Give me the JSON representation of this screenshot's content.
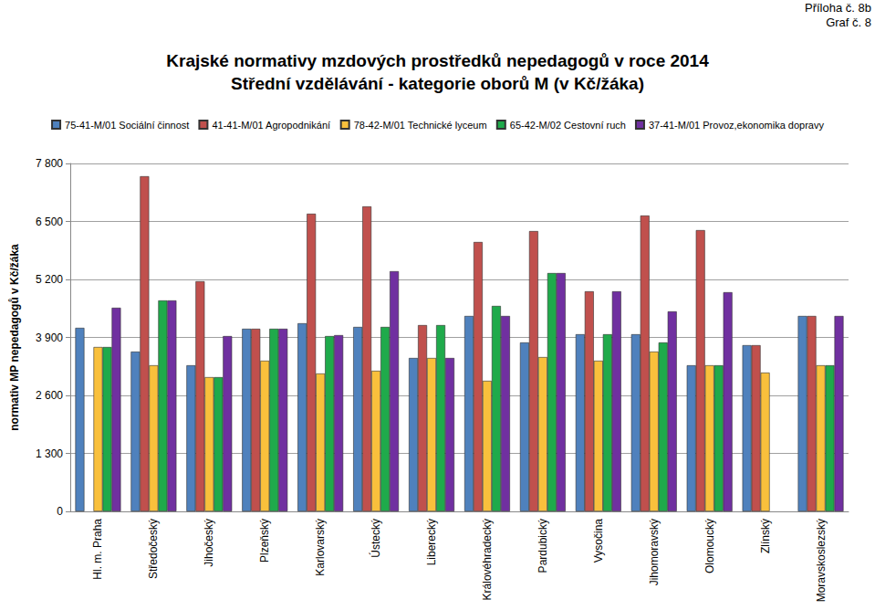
{
  "chart_data": {
    "type": "bar",
    "title": "Krajské normativy mzdových prostředků nepedagogů v roce 2014",
    "subtitle": "Střední vzdělávání - kategorie oborů M (v Kč/žáka)",
    "annotations": [
      "Příloha č. 8b",
      "Graf č. 8"
    ],
    "y_label": "normativ MP nepedagogů v Kč/žáka",
    "categories": [
      "Hl. m. Praha",
      "Středočeský",
      "Jihočeský",
      "Plzeňský",
      "Karlovarský",
      "Ústecký",
      "Liberecký",
      "Královéhradecký",
      "Pardubický",
      "Vysočina",
      "Jihomoravský",
      "Olomoucký",
      "Zlínský",
      "Moravskoslezský"
    ],
    "series": [
      {
        "name": "75-41-M/01 Sociální činnost",
        "color": "#4f81bd",
        "values": [
          4115,
          3582,
          3275,
          4094,
          4217,
          4135,
          3439,
          4381,
          3787,
          3971,
          3971,
          3275,
          3726,
          4381
        ]
      },
      {
        "name": "41-41-M/01 Agropodnikání",
        "color": "#c0504d",
        "values": [
          null,
          7513,
          5159,
          4094,
          6673,
          6837,
          4176,
          6039,
          6284,
          4933,
          6632,
          6305,
          3726,
          4381
        ]
      },
      {
        "name": "78-42-M/01 Technické lyceum",
        "color": "#f9c03c",
        "values": [
          3685,
          3275,
          3009,
          3378,
          3091,
          3152,
          3439,
          2927,
          3459,
          3378,
          3582,
          3275,
          3111,
          3275
        ]
      },
      {
        "name": "65-42-M/02 Cestovní ruch",
        "color": "#1faa4b",
        "values": [
          3685,
          4729,
          3009,
          4094,
          3930,
          4135,
          4176,
          4606,
          5343,
          3971,
          3787,
          3275,
          null,
          3275
        ]
      },
      {
        "name": "37-41-M/01 Provoz,ekonomika dopravy",
        "color": "#7030a0",
        "values": [
          4565,
          4729,
          3930,
          4094,
          3951,
          5384,
          3439,
          4381,
          5343,
          4933,
          4483,
          4913,
          null,
          4381
        ]
      }
    ],
    "ylim": [
      0,
      7800
    ],
    "yticks": [
      0,
      {
        "value": 1300,
        "label": "1 300"
      },
      {
        "value": 2600,
        "label": "2 600"
      },
      {
        "value": 3900,
        "label": "3 900"
      },
      {
        "value": 5200,
        "label": "5 200"
      },
      {
        "value": 6500,
        "label": "6 500"
      },
      {
        "value": 7800,
        "label": "7 800"
      }
    ],
    "grid": true,
    "legend": "top"
  }
}
